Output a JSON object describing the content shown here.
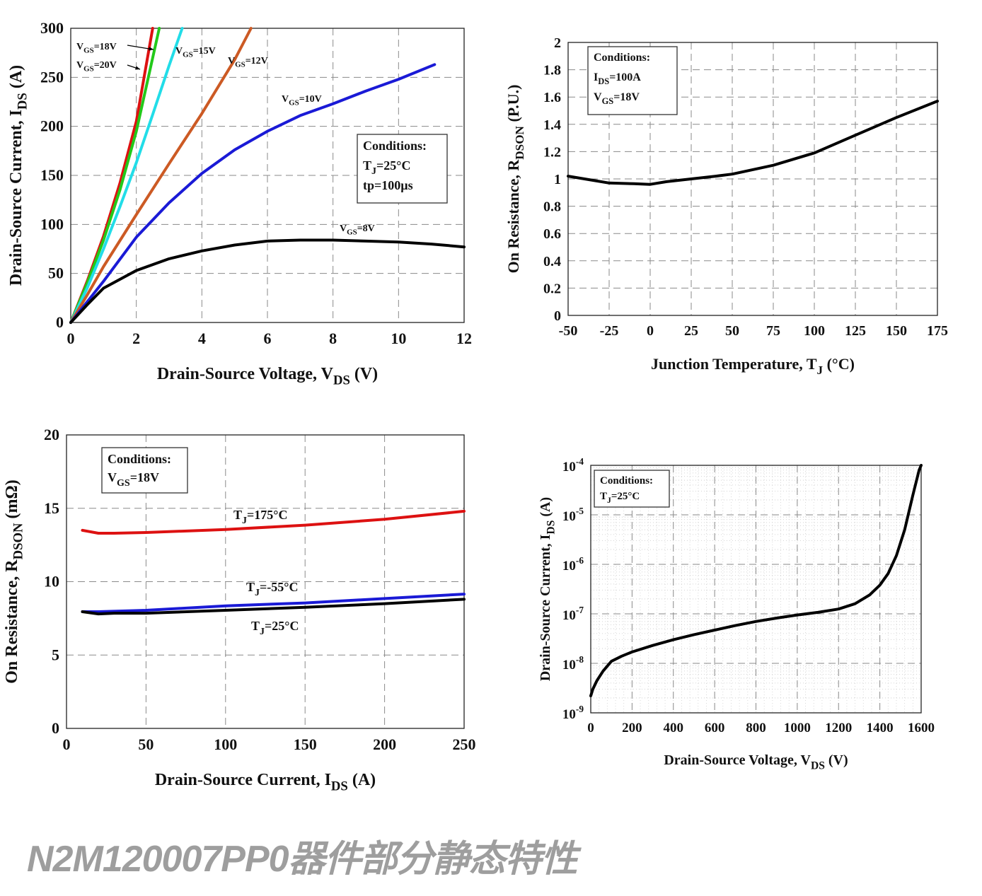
{
  "caption": "N2M120007PP0器件部分静态特性",
  "chart_data": [
    {
      "id": "output",
      "type": "line",
      "xlabel": "Drain-Source Voltage, V",
      "xlabel_sub": "DS",
      "xlabel_unit": " (V)",
      "ylabel": "Drain-Source Current, I",
      "ylabel_sub": "DS",
      "ylabel_unit": " (A)",
      "xlim": [
        0,
        12
      ],
      "ylim": [
        0,
        300
      ],
      "xticks": [
        0,
        2,
        4,
        6,
        8,
        10,
        12
      ],
      "yticks": [
        0,
        50,
        100,
        150,
        200,
        250,
        300
      ],
      "grid": true,
      "conditions": [
        {
          "main": "Conditions:",
          "sub": "",
          "tail": ""
        },
        {
          "main": "T",
          "sub": "J",
          "tail": "=25°C"
        },
        {
          "main": "tp=100µs",
          "sub": "",
          "tail": ""
        }
      ],
      "series": [
        {
          "name": "VGS=18V",
          "label_main": "V",
          "label_sub": "GS",
          "label_tail": "=18V",
          "color": "#dd1111",
          "points": [
            [
              0,
              0
            ],
            [
              0.5,
              42
            ],
            [
              1,
              88
            ],
            [
              1.5,
              142
            ],
            [
              2,
              205
            ],
            [
              2.5,
              300
            ]
          ]
        },
        {
          "name": "VGS=20V",
          "label_main": "V",
          "label_sub": "GS",
          "label_tail": "=20V",
          "color": "#22c91a",
          "points": [
            [
              0,
              0
            ],
            [
              0.5,
              40
            ],
            [
              1,
              84
            ],
            [
              1.5,
              135
            ],
            [
              2,
              195
            ],
            [
              2.7,
              300
            ]
          ]
        },
        {
          "name": "VGS=15V",
          "label_main": "V",
          "label_sub": "GS",
          "label_tail": "=15V",
          "color": "#22dde8",
          "points": [
            [
              0,
              0
            ],
            [
              0.5,
              35
            ],
            [
              1,
              75
            ],
            [
              1.5,
              118
            ],
            [
              2,
              163
            ],
            [
              2.5,
              212
            ],
            [
              3,
              262
            ],
            [
              3.4,
              300
            ]
          ]
        },
        {
          "name": "VGS=12V",
          "label_main": "V",
          "label_sub": "GS",
          "label_tail": "=12V",
          "color": "#cc5a24",
          "points": [
            [
              0,
              0
            ],
            [
              0.5,
              28
            ],
            [
              1,
              57
            ],
            [
              2,
              110
            ],
            [
              3,
              162
            ],
            [
              4,
              213
            ],
            [
              5,
              268
            ],
            [
              5.5,
              300
            ]
          ]
        },
        {
          "name": "VGS=10V",
          "label_main": "V",
          "label_sub": "GS",
          "label_tail": "=10V",
          "color": "#1a1ad6",
          "points": [
            [
              0,
              0
            ],
            [
              1,
              42
            ],
            [
              2,
              87
            ],
            [
              3,
              122
            ],
            [
              4,
              152
            ],
            [
              5,
              176
            ],
            [
              6,
              195
            ],
            [
              7,
              211
            ],
            [
              8,
              223
            ],
            [
              9,
              236
            ],
            [
              10,
              248
            ],
            [
              11.1,
              263
            ]
          ]
        },
        {
          "name": "VGS=8V",
          "label_main": "V",
          "label_sub": "GS",
          "label_tail": "=8V",
          "color": "#000000",
          "points": [
            [
              0,
              0
            ],
            [
              0.5,
              18
            ],
            [
              1,
              35
            ],
            [
              2,
              53
            ],
            [
              3,
              65
            ],
            [
              4,
              73
            ],
            [
              5,
              79
            ],
            [
              6,
              83
            ],
            [
              7,
              84
            ],
            [
              8,
              84
            ],
            [
              9,
              83
            ],
            [
              10,
              82
            ],
            [
              11,
              80
            ],
            [
              12,
              77
            ]
          ]
        }
      ]
    },
    {
      "id": "rdson-temp",
      "type": "line",
      "xlabel": "Junction Temperature, T",
      "xlabel_sub": "J",
      "xlabel_unit": " (°C)",
      "ylabel": "On Resistance, R",
      "ylabel_sub": "DSON",
      "ylabel_unit": " (P.U.)",
      "xlim": [
        -50,
        175
      ],
      "ylim": [
        0,
        2
      ],
      "xticks": [
        -50,
        -25,
        0,
        25,
        50,
        75,
        100,
        125,
        150,
        175
      ],
      "yticks": [
        0,
        0.2,
        0.4,
        0.6,
        0.8,
        1,
        1.2,
        1.4,
        1.6,
        1.8,
        2
      ],
      "grid": true,
      "conditions": [
        {
          "main": "Conditions:",
          "sub": "",
          "tail": ""
        },
        {
          "main": "I",
          "sub": "DS",
          "tail": "=100A"
        },
        {
          "main": "V",
          "sub": "GS",
          "tail": "=18V"
        }
      ],
      "series": [
        {
          "name": "",
          "color": "#000000",
          "points": [
            [
              -50,
              1.02
            ],
            [
              -40,
              1.0
            ],
            [
              -25,
              0.97
            ],
            [
              -10,
              0.965
            ],
            [
              0,
              0.96
            ],
            [
              10,
              0.98
            ],
            [
              25,
              1.0
            ],
            [
              40,
              1.02
            ],
            [
              50,
              1.035
            ],
            [
              75,
              1.1
            ],
            [
              100,
              1.19
            ],
            [
              125,
              1.32
            ],
            [
              150,
              1.45
            ],
            [
              175,
              1.57
            ]
          ]
        }
      ]
    },
    {
      "id": "rdson-current",
      "type": "line",
      "xlabel": "Drain-Source Current, I",
      "xlabel_sub": "DS",
      "xlabel_unit": " (A)",
      "ylabel": "On Resistance, R",
      "ylabel_sub": "DSON",
      "ylabel_unit": " (mΩ)",
      "xlim": [
        0,
        250
      ],
      "ylim": [
        0,
        20
      ],
      "xticks": [
        0,
        50,
        100,
        150,
        200,
        250
      ],
      "yticks": [
        0,
        5,
        10,
        15,
        20
      ],
      "grid": true,
      "conditions": [
        {
          "main": "Conditions:",
          "sub": "",
          "tail": ""
        },
        {
          "main": "V",
          "sub": "GS",
          "tail": "=18V"
        }
      ],
      "series": [
        {
          "name": "TJ=175°C",
          "label_main": "T",
          "label_sub": "J",
          "label_tail": "=175°C",
          "color": "#dd1111",
          "points": [
            [
              10,
              13.5
            ],
            [
              20,
              13.3
            ],
            [
              30,
              13.3
            ],
            [
              50,
              13.35
            ],
            [
              100,
              13.55
            ],
            [
              150,
              13.85
            ],
            [
              200,
              14.25
            ],
            [
              250,
              14.8
            ]
          ]
        },
        {
          "name": "TJ=-55°C",
          "label_main": "T",
          "label_sub": "J",
          "label_tail": "=-55°C",
          "color": "#1a1ad6",
          "points": [
            [
              10,
              7.95
            ],
            [
              20,
              7.95
            ],
            [
              50,
              8.05
            ],
            [
              100,
              8.35
            ],
            [
              150,
              8.55
            ],
            [
              200,
              8.85
            ],
            [
              250,
              9.15
            ]
          ]
        },
        {
          "name": "TJ=25°C",
          "label_main": "T",
          "label_sub": "J",
          "label_tail": "=25°C",
          "color": "#000000",
          "points": [
            [
              10,
              7.95
            ],
            [
              20,
              7.8
            ],
            [
              30,
              7.85
            ],
            [
              50,
              7.85
            ],
            [
              100,
              8.05
            ],
            [
              150,
              8.25
            ],
            [
              200,
              8.5
            ],
            [
              250,
              8.8
            ]
          ]
        }
      ]
    },
    {
      "id": "leakage",
      "type": "line",
      "yscale": "log",
      "xlabel": "Drain-Source Voltage, V",
      "xlabel_sub": "DS",
      "xlabel_unit": " (V)",
      "ylabel": "Drain-Source Current, I",
      "ylabel_sub": "DS",
      "ylabel_unit": " (A)",
      "xlim": [
        0,
        1600
      ],
      "ylim": [
        1e-09,
        0.0001
      ],
      "xticks": [
        0,
        200,
        400,
        600,
        800,
        1000,
        1200,
        1400,
        1600
      ],
      "yticks_exp": [
        -9,
        -8,
        -7,
        -6,
        -5,
        -4
      ],
      "ytick_base": "10",
      "grid": true,
      "conditions": [
        {
          "main": "Conditions:",
          "sub": "",
          "tail": ""
        },
        {
          "main": "T",
          "sub": "J",
          "tail": "=25°C"
        }
      ],
      "series": [
        {
          "name": "",
          "color": "#000000",
          "points": [
            [
              0,
              2.2e-09
            ],
            [
              10,
              3e-09
            ],
            [
              30,
              4.5e-09
            ],
            [
              60,
              7e-09
            ],
            [
              100,
              1.1e-08
            ],
            [
              150,
              1.4e-08
            ],
            [
              200,
              1.7e-08
            ],
            [
              300,
              2.3e-08
            ],
            [
              400,
              3e-08
            ],
            [
              500,
              3.8e-08
            ],
            [
              600,
              4.7e-08
            ],
            [
              700,
              5.8e-08
            ],
            [
              800,
              7e-08
            ],
            [
              900,
              8.2e-08
            ],
            [
              1000,
              9.5e-08
            ],
            [
              1100,
              1.07e-07
            ],
            [
              1200,
              1.25e-07
            ],
            [
              1280,
              1.6e-07
            ],
            [
              1350,
              2.4e-07
            ],
            [
              1400,
              3.8e-07
            ],
            [
              1440,
              6.5e-07
            ],
            [
              1480,
              1.5e-06
            ],
            [
              1520,
              5e-06
            ],
            [
              1560,
              2.5e-05
            ],
            [
              1590,
              8e-05
            ],
            [
              1600,
              0.0001
            ]
          ]
        }
      ]
    }
  ]
}
